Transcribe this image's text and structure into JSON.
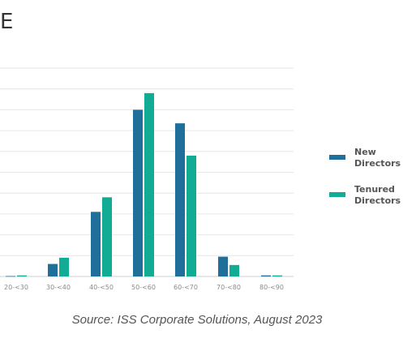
{
  "header": {
    "title_fragment": "E"
  },
  "chart_data": {
    "type": "bar",
    "categories": [
      "20-<30",
      "30-<40",
      "40-<50",
      "50-<60",
      "60-<70",
      "70-<80",
      "80-<90"
    ],
    "series": [
      {
        "name": "New\nDirectors",
        "color": "#1f6f9a",
        "values": [
          0.2,
          6,
          31,
          80,
          73.5,
          9.5,
          0.5
        ]
      },
      {
        "name": "Tenured\nDirectors",
        "color": "#12ac94",
        "values": [
          0.5,
          9,
          38,
          88,
          58,
          5.5,
          0.5
        ]
      }
    ],
    "ylim": [
      0,
      100
    ],
    "gridlines": true,
    "legend_position": "right"
  },
  "source": "Source: ISS Corporate Solutions, August 2023"
}
